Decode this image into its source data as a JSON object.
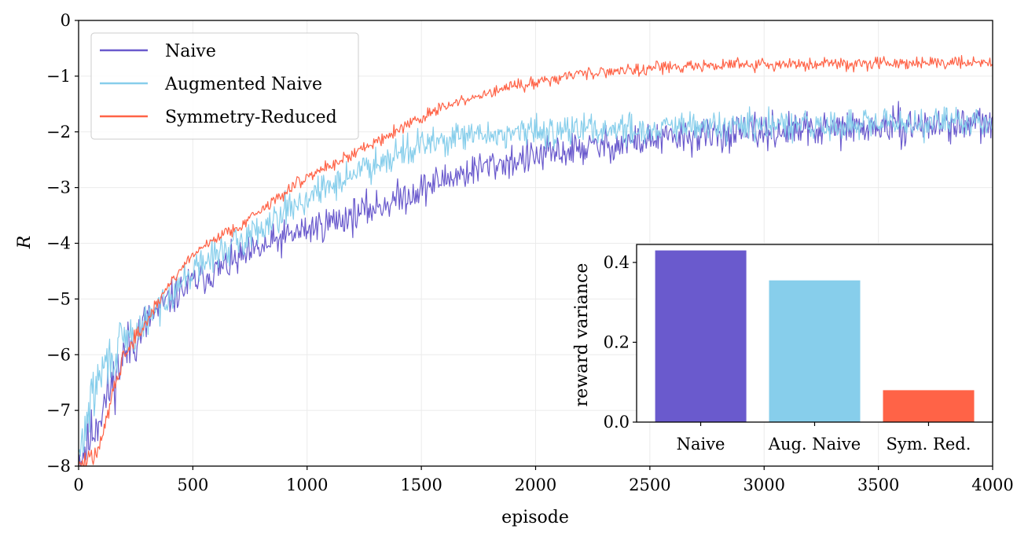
{
  "chart_data": [
    {
      "type": "line",
      "title": "",
      "xlabel": "episode",
      "ylabel": "R",
      "xlim": [
        0,
        4000
      ],
      "ylim": [
        -8,
        0
      ],
      "xticks": [
        0,
        500,
        1000,
        1500,
        2000,
        2500,
        3000,
        3500,
        4000
      ],
      "xtick_labels": [
        "0",
        "500",
        "1000",
        "1500",
        "2000",
        "2500",
        "3000",
        "3500",
        "4000"
      ],
      "yticks": [
        0,
        -1,
        -2,
        -3,
        -4,
        -5,
        -6,
        -7,
        -8
      ],
      "ytick_labels": [
        "0",
        "−1",
        "−2",
        "−3",
        "−4",
        "−5",
        "−6",
        "−7",
        "−8"
      ],
      "grid": true,
      "legend_position": "top-left",
      "series": [
        {
          "name": "Naive",
          "color": "#6a5acd",
          "x": [
            0,
            50,
            100,
            150,
            200,
            300,
            400,
            500,
            600,
            700,
            800,
            900,
            1000,
            1200,
            1400,
            1600,
            1800,
            2000,
            2200,
            2500,
            2800,
            3000,
            3300,
            3600,
            4000
          ],
          "y": [
            -7.9,
            -7.5,
            -7.0,
            -6.5,
            -6.0,
            -5.4,
            -5.0,
            -4.7,
            -4.5,
            -4.3,
            -4.1,
            -3.9,
            -3.75,
            -3.5,
            -3.2,
            -2.85,
            -2.6,
            -2.45,
            -2.3,
            -2.15,
            -2.05,
            -2.0,
            -1.95,
            -1.9,
            -1.85
          ],
          "noise": 0.22
        },
        {
          "name": "Augmented Naive",
          "color": "#87ceeb",
          "x": [
            0,
            50,
            100,
            150,
            200,
            300,
            400,
            500,
            600,
            700,
            800,
            900,
            1000,
            1200,
            1400,
            1600,
            1800,
            2000,
            2200,
            2500,
            2800,
            3000,
            3300,
            3600,
            4000
          ],
          "y": [
            -7.9,
            -6.9,
            -6.3,
            -6.0,
            -5.8,
            -5.4,
            -4.9,
            -4.5,
            -4.2,
            -4.0,
            -3.7,
            -3.4,
            -3.2,
            -2.75,
            -2.35,
            -2.15,
            -2.05,
            -2.0,
            -1.95,
            -1.95,
            -1.9,
            -1.9,
            -1.9,
            -1.85,
            -1.8
          ],
          "noise": 0.2
        },
        {
          "name": "Symmetry-Reduced",
          "color": "#ff6347",
          "x": [
            0,
            50,
            100,
            150,
            200,
            300,
            400,
            500,
            600,
            700,
            800,
            900,
            1000,
            1200,
            1400,
            1600,
            1800,
            2000,
            2200,
            2500,
            2800,
            3000,
            3300,
            3600,
            4000
          ],
          "y": [
            -8.0,
            -7.9,
            -7.6,
            -6.6,
            -6.0,
            -5.4,
            -4.7,
            -4.2,
            -3.9,
            -3.7,
            -3.4,
            -3.1,
            -2.8,
            -2.4,
            -1.95,
            -1.55,
            -1.3,
            -1.1,
            -0.95,
            -0.85,
            -0.8,
            -0.8,
            -0.78,
            -0.75,
            -0.75
          ],
          "noise": 0.08
        }
      ]
    },
    {
      "type": "bar",
      "title": "",
      "xlabel": "",
      "ylabel": "reward variance",
      "categories": [
        "Naive",
        "Aug. Naive",
        "Sym. Red."
      ],
      "values": [
        0.43,
        0.355,
        0.08
      ],
      "colors": [
        "#6a5acd",
        "#87ceeb",
        "#ff6347"
      ],
      "ylim": [
        0,
        0.445
      ],
      "yticks": [
        0.0,
        0.2,
        0.4
      ],
      "ytick_labels": [
        "0.0",
        "0.2",
        "0.4"
      ],
      "grid": false,
      "legend_position": "none"
    }
  ]
}
